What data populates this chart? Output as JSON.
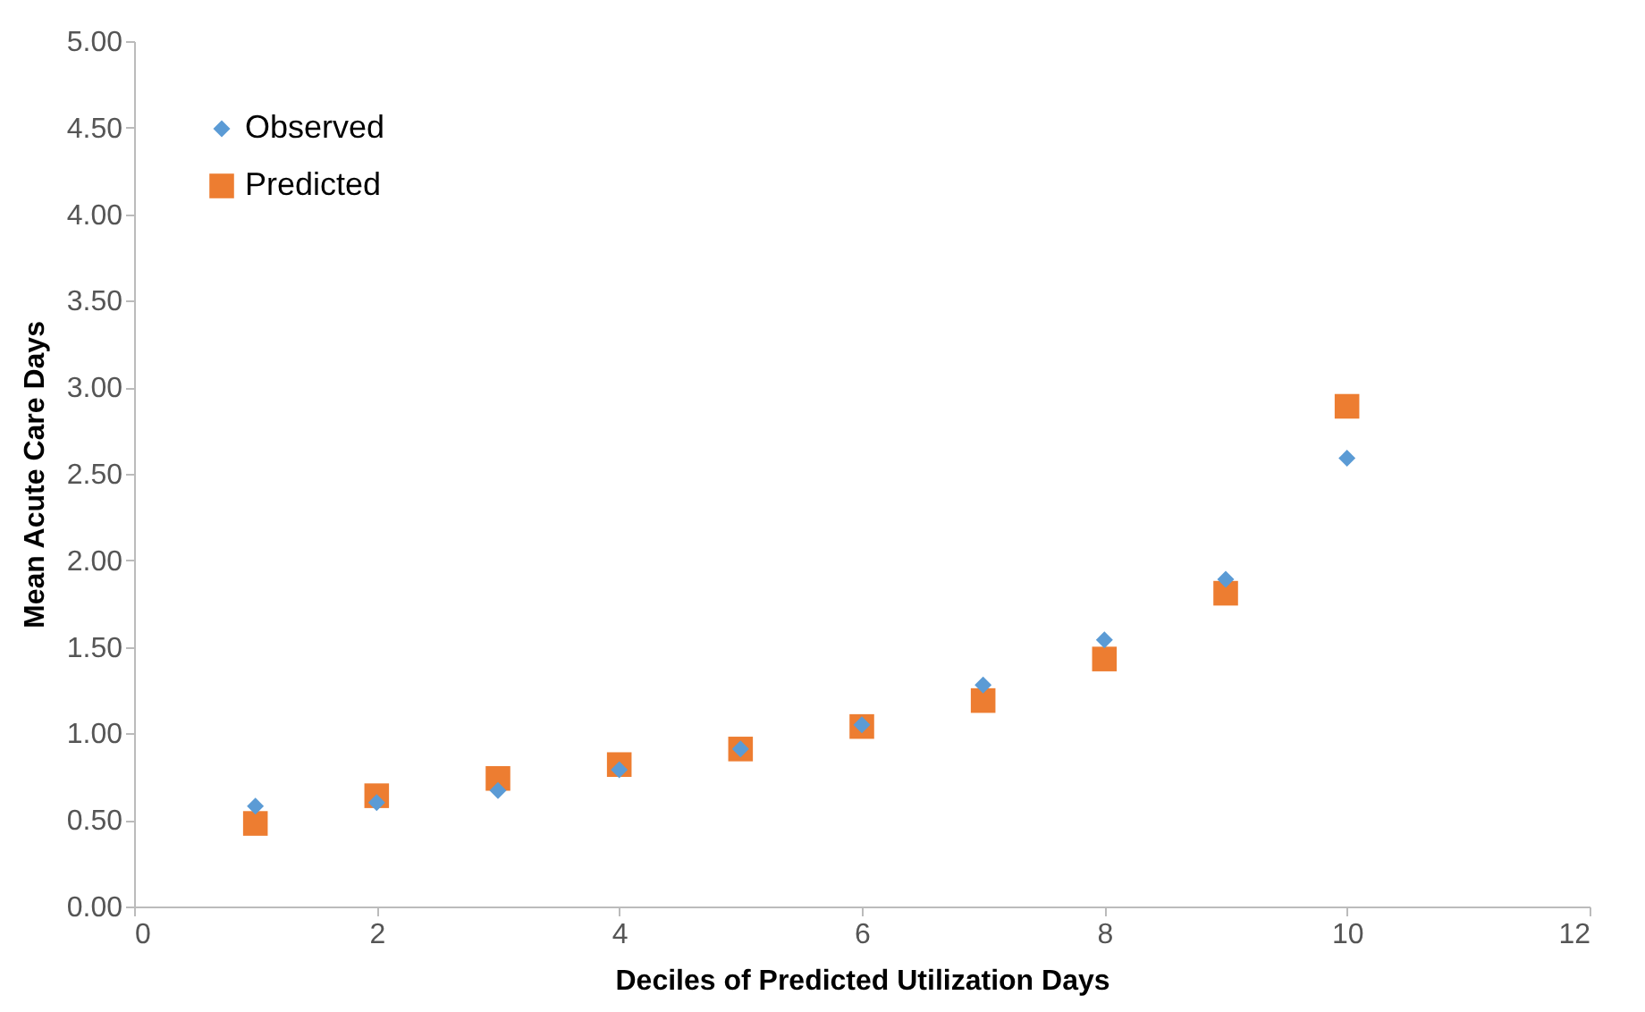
{
  "chart_data": {
    "type": "scatter",
    "xlabel": "Deciles of Predicted Utilization Days",
    "ylabel": "Mean Acute Care Days",
    "x": [
      1,
      2,
      3,
      4,
      5,
      6,
      7,
      8,
      9,
      10
    ],
    "series": [
      {
        "name": "Observed",
        "color": "#5b9bd5",
        "marker": "diamond",
        "values": [
          0.58,
          0.6,
          0.67,
          0.79,
          0.91,
          1.05,
          1.28,
          1.54,
          1.89,
          2.59
        ]
      },
      {
        "name": "Predicted",
        "color": "#ed7d31",
        "marker": "square",
        "values": [
          0.48,
          0.64,
          0.74,
          0.82,
          0.91,
          1.04,
          1.19,
          1.43,
          1.81,
          2.89
        ]
      }
    ],
    "xlim": [
      0,
      12
    ],
    "xticks": [
      0,
      2,
      4,
      6,
      8,
      10,
      12
    ],
    "ylim": [
      0,
      5
    ],
    "yticks": [
      {
        "value": 0,
        "label": "0.00"
      },
      {
        "value": 0.5,
        "label": "0.50"
      },
      {
        "value": 1,
        "label": "1.00"
      },
      {
        "value": 1.5,
        "label": "1.50"
      },
      {
        "value": 2,
        "label": "2.00"
      },
      {
        "value": 2.5,
        "label": "2.50"
      },
      {
        "value": 3,
        "label": "3.00"
      },
      {
        "value": 3.5,
        "label": "3.50"
      },
      {
        "value": 4,
        "label": "4.00"
      },
      {
        "value": 4.5,
        "label": "4.50"
      },
      {
        "value": 5,
        "label": "5.00"
      }
    ],
    "grid": false,
    "legend": "top left"
  }
}
